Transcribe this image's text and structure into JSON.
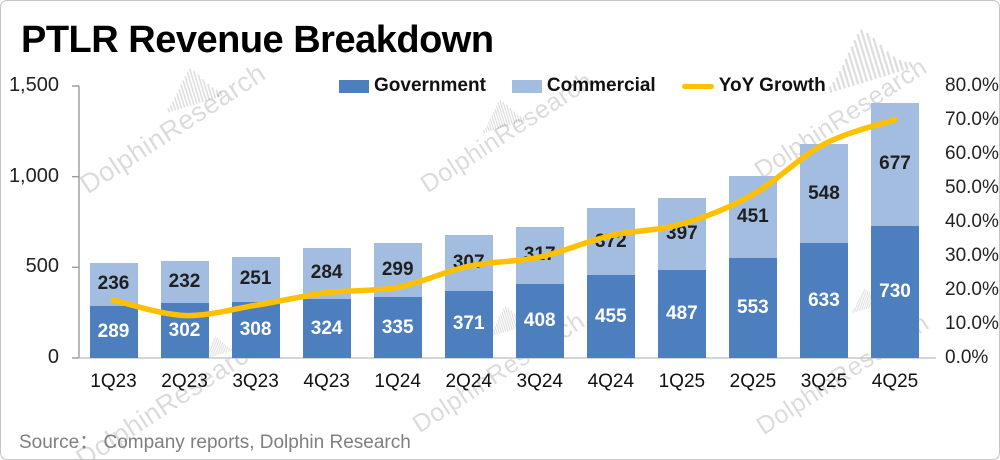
{
  "title": "PTLR Revenue Breakdown",
  "source": "Source：  Company reports, Dolphin Research",
  "watermark": {
    "text": "DolphinResearch"
  },
  "colors": {
    "government": "#4D7EBD",
    "commercial": "#A2BDDF",
    "yoy_line": "#FFC000",
    "axis_text": "#222222",
    "source_text": "#7f7f7f"
  },
  "legend": [
    {
      "label": "Government",
      "swatch": "box",
      "color": "#4D7EBD"
    },
    {
      "label": "Commercial",
      "swatch": "box",
      "color": "#A2BDDF"
    },
    {
      "label": "YoY Growth",
      "swatch": "line",
      "color": "#FFC000"
    }
  ],
  "chart_data": {
    "type": "bar",
    "subtype": "stacked-bars-with-line",
    "title": "PTLR Revenue Breakdown",
    "categories": [
      "1Q23",
      "2Q23",
      "3Q23",
      "4Q23",
      "1Q24",
      "2Q24",
      "3Q24",
      "4Q24",
      "1Q25",
      "2Q25",
      "3Q25",
      "4Q25"
    ],
    "series": [
      {
        "name": "Government",
        "color": "#4D7EBD",
        "label_color": "#ffffff",
        "values": [
          289,
          302,
          308,
          324,
          335,
          371,
          408,
          455,
          487,
          553,
          633,
          730
        ]
      },
      {
        "name": "Commercial",
        "color": "#A2BDDF",
        "label_color": "#1f1f1f",
        "values": [
          236,
          232,
          251,
          284,
          299,
          307,
          317,
          372,
          397,
          451,
          548,
          677
        ]
      }
    ],
    "line_series": {
      "name": "YoY Growth",
      "color": "#FFC000",
      "axis": "right",
      "values_pct": [
        17.0,
        12.5,
        15.5,
        19.2,
        20.8,
        27.0,
        29.7,
        36.0,
        39.4,
        48.1,
        62.9,
        70.1
      ]
    },
    "left_axis": {
      "ticks": [
        "1,500",
        "1,000",
        "500",
        "0"
      ],
      "min": 0,
      "max": 1500
    },
    "right_axis": {
      "ticks": [
        "80.0%",
        "70.0%",
        "60.0%",
        "50.0%",
        "40.0%",
        "30.0%",
        "20.0%",
        "10.0%",
        "0.0%"
      ],
      "min": 0,
      "max": 80
    },
    "grid": false,
    "legend_position": "top-center"
  }
}
